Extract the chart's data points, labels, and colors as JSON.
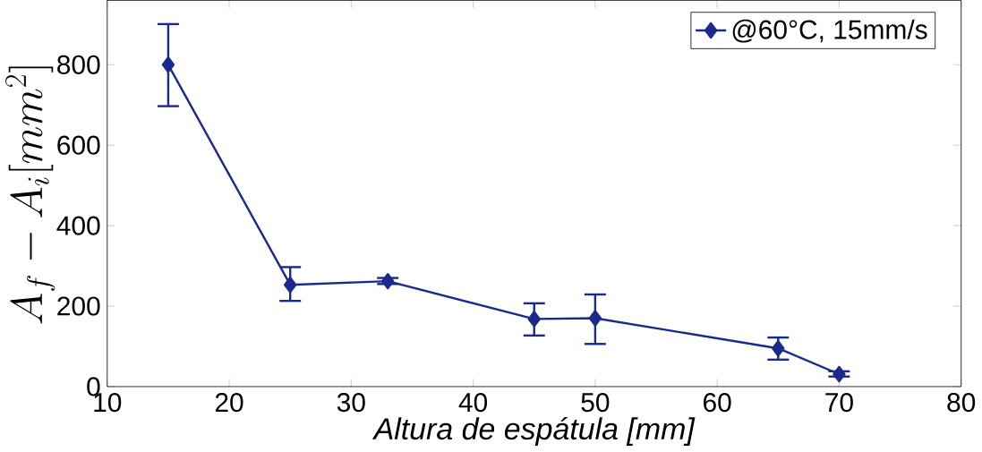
{
  "chart_data": {
    "type": "line",
    "xlabel": "Altura de espátula  [mm]",
    "ylabel": "A_f - A_i [mm^2]",
    "x": [
      15,
      25,
      33,
      45,
      50,
      65,
      70
    ],
    "series": [
      {
        "name": "@60°C, 15mm/s",
        "color": "#1a2a8c",
        "values": [
          800,
          253,
          262,
          168,
          170,
          95,
          31
        ],
        "errors": [
          [
            697,
            901
          ],
          [
            213,
            297
          ],
          [
            255,
            270
          ],
          [
            127,
            207
          ],
          [
            106,
            229
          ],
          [
            67,
            122
          ],
          [
            25,
            38
          ]
        ]
      }
    ],
    "xlim": [
      10,
      80
    ],
    "xticks": [
      10,
      20,
      30,
      40,
      50,
      60,
      70,
      80
    ],
    "ylim": [
      0,
      960
    ],
    "yticks": [
      0,
      200,
      400,
      600,
      800
    ],
    "legend": "top right",
    "marker": "diamond",
    "line_style": "solid",
    "grid": false
  }
}
